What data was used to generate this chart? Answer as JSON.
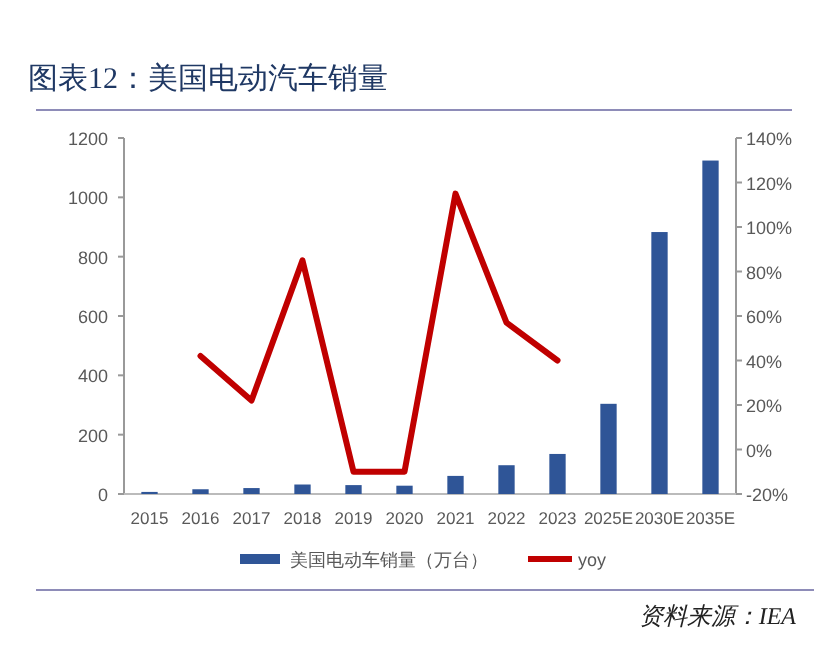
{
  "chart_data": {
    "type": "bar",
    "title": "图表12：美国电动汽车销量",
    "categories": [
      "2015",
      "2016",
      "2017",
      "2018",
      "2019",
      "2020",
      "2021",
      "2022",
      "2023",
      "2025E",
      "2030E",
      "2035E"
    ],
    "series": [
      {
        "name": "美国电动车销量（万台）",
        "color": "#2f5597",
        "values": [
          7,
          16,
          20,
          32,
          30,
          28,
          61,
          97,
          135,
          304,
          883,
          1124
        ]
      },
      {
        "name": "yoy",
        "type": "line",
        "axis": "y2",
        "color": "#c00000",
        "values": [
          null,
          42,
          22,
          85,
          -10,
          -10,
          115,
          57,
          40,
          null,
          null,
          null
        ]
      }
    ],
    "ylim": [
      0,
      1200
    ],
    "yticks": [
      0,
      200,
      400,
      600,
      800,
      1000,
      1200
    ],
    "y2lim": [
      -20,
      140
    ],
    "y2ticks": [
      {
        "value": -20,
        "label": "-20%"
      },
      {
        "value": 0,
        "label": "0%"
      },
      {
        "value": 20,
        "label": "20%"
      },
      {
        "value": 40,
        "label": "40%"
      },
      {
        "value": 60,
        "label": "60%"
      },
      {
        "value": 80,
        "label": "80%"
      },
      {
        "value": 100,
        "label": "100%"
      },
      {
        "value": 120,
        "label": "120%"
      },
      {
        "value": 140,
        "label": "140%"
      }
    ],
    "grid": false,
    "legend": "bottom",
    "marker": "none",
    "line_style": "solid",
    "annotations": [
      "资料来源：IEA"
    ]
  }
}
